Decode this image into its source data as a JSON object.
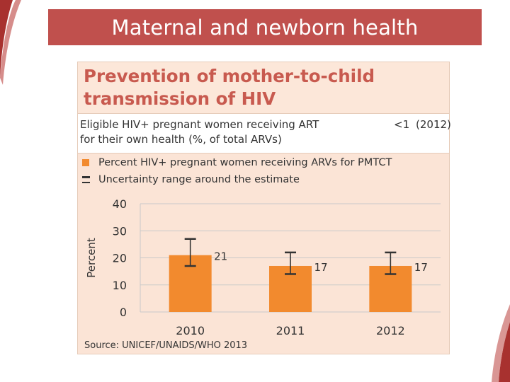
{
  "slide": {
    "title": "Maternal and newborn health"
  },
  "card": {
    "heading": "Prevention of mother-to-child transmission of HIV",
    "eligible": {
      "label": "Eligible HIV+ pregnant women receiving ART for their own health (%, of total ARVs)",
      "value": "<1",
      "year": "(2012)"
    },
    "legend": {
      "series": "Percent HIV+ pregnant women receiving ARVs for PMTCT",
      "uncertainty": "Uncertainty range around the estimate"
    },
    "source": "Source: UNICEF/UNAIDS/WHO 2013"
  },
  "colors": {
    "accent": "#c0504d",
    "bar": "#f28a2e",
    "panel": "#fbe4d6"
  },
  "chart_data": {
    "type": "bar",
    "title": "",
    "xlabel": "",
    "ylabel": "Percent",
    "ylim": [
      0,
      40
    ],
    "yticks": [
      0,
      10,
      20,
      30,
      40
    ],
    "grid": true,
    "categories": [
      "2010",
      "2011",
      "2012"
    ],
    "values": [
      21,
      17,
      17
    ],
    "labels": [
      "21",
      "17",
      "17"
    ],
    "error_low": [
      17,
      14,
      14
    ],
    "error_high": [
      27,
      22,
      22
    ]
  }
}
